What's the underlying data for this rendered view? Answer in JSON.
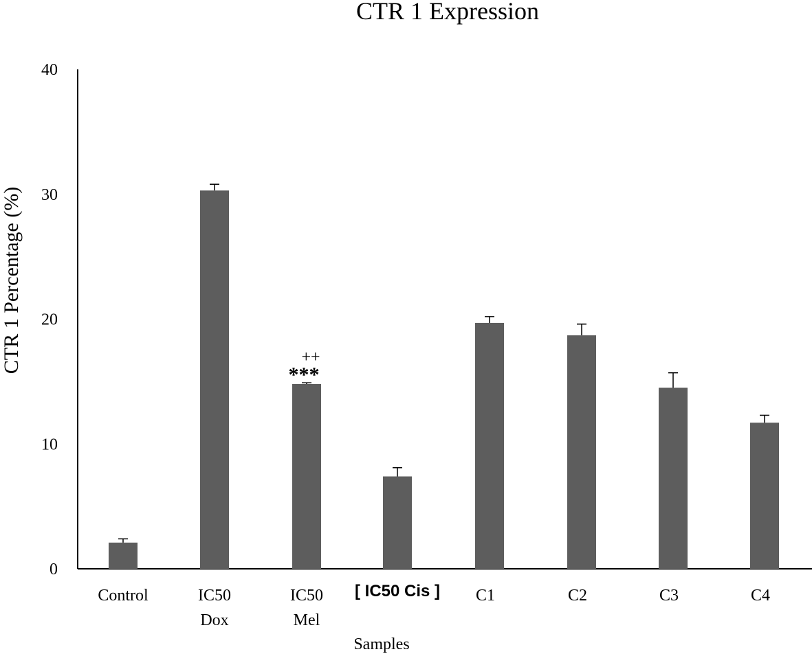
{
  "chart_data": {
    "type": "bar",
    "title": "CTR 1 Expression",
    "xlabel": "Samples",
    "ylabel": "CTR 1 Percentage (%)",
    "ylim": [
      0,
      40
    ],
    "yticks": [
      "0",
      "10",
      "20",
      "30",
      "40"
    ],
    "categories": [
      [
        "Control"
      ],
      [
        "IC50",
        "Dox"
      ],
      [
        "IC50",
        "Mel"
      ],
      [
        "[ IC50 Cis ]"
      ],
      [
        "C1"
      ],
      [
        "C2"
      ],
      [
        "C3"
      ],
      [
        "C4"
      ]
    ],
    "values": [
      2.1,
      30.3,
      14.8,
      7.4,
      19.7,
      18.7,
      14.5,
      11.7
    ],
    "errors": [
      0.3,
      0.5,
      0.1,
      0.7,
      0.5,
      0.9,
      1.2,
      0.6
    ],
    "annotations": [
      {
        "category_index": 2,
        "marks": "***",
        "extra": "++"
      }
    ],
    "bar_color": "#5d5d5d",
    "grid": false,
    "legend": "none"
  }
}
